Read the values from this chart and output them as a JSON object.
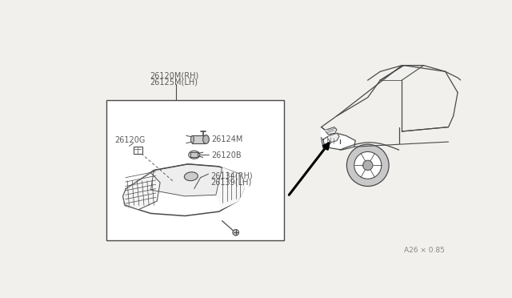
{
  "bg_color": "#f2f0ec",
  "line_color": "#4a4a4a",
  "text_color": "#5a5a5a",
  "box_bg": "#ffffff",
  "watermark": "A26 × 0.85",
  "labels": {
    "top1": "26120M(RH)",
    "top2": "26125M(LH)",
    "l26120G": "26120G",
    "l26124M": "26124M",
    "l26120B": "26120B",
    "l26134": "26134(RH)",
    "l26139": "26139(LH)"
  }
}
